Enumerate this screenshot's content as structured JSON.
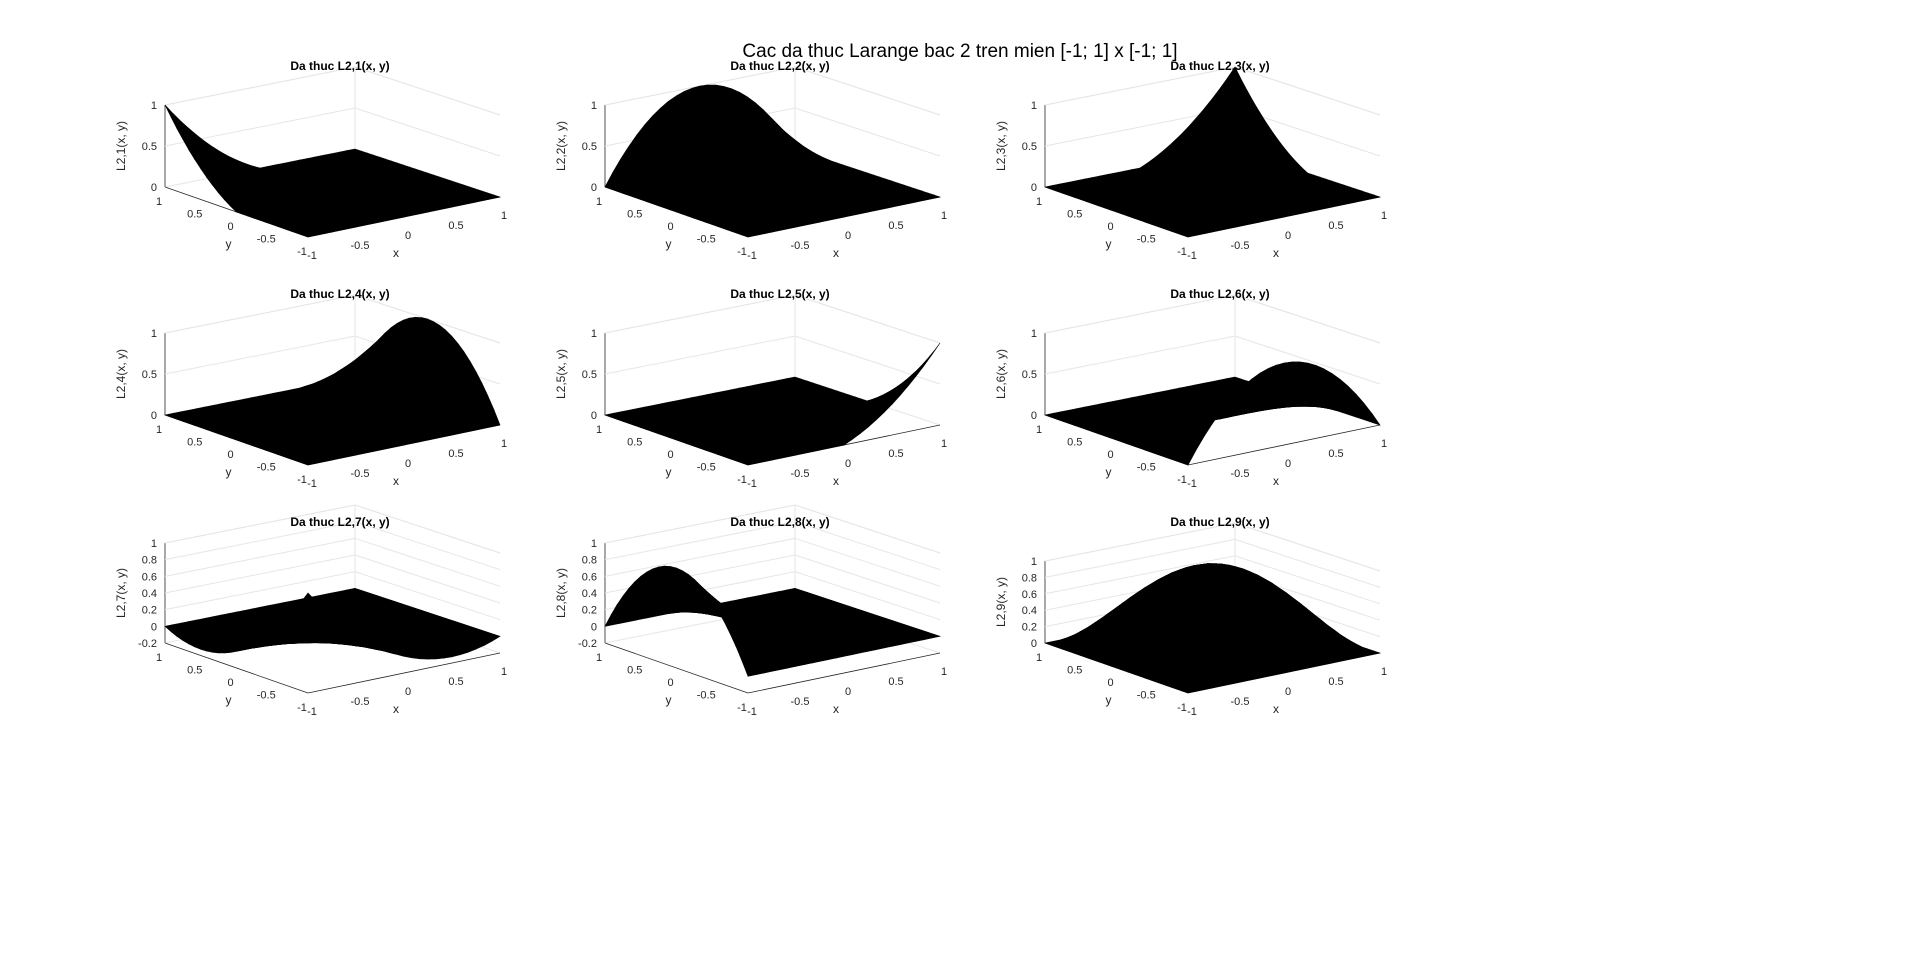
{
  "figure": {
    "title": "Cac da thuc Larange bac 2 tren mien [-1; 1] x [-1; 1]",
    "colors": {
      "surface": "#000000",
      "axis": "#262626",
      "grid": "#e6e6e6",
      "background": "#ffffff"
    }
  },
  "chart_data": [
    {
      "type": "surface",
      "id": "L1",
      "title": "Da thuc L2,1(x, y)",
      "xlabel": "x",
      "ylabel": "y",
      "zlabel": "L2,1(x, y)",
      "nodes": {
        "x": [
          -1,
          0,
          1
        ],
        "y": [
          -1,
          0,
          1
        ]
      },
      "peak_node": [
        -1,
        1
      ],
      "xlim": [
        -1,
        1
      ],
      "ylim": [
        -1,
        1
      ],
      "zlim": [
        0,
        1
      ],
      "xticks": [
        "-1",
        "-0.5",
        "0",
        "0.5",
        "1"
      ],
      "yticks": [
        "-1",
        "-0.5",
        "0",
        "0.5",
        "1"
      ],
      "zticks": [
        "0",
        "0.5",
        "1"
      ],
      "grid": true
    },
    {
      "type": "surface",
      "id": "L2",
      "title": "Da thuc L2,2(x, y)",
      "xlabel": "x",
      "ylabel": "y",
      "zlabel": "L2,2(x, y)",
      "nodes": {
        "x": [
          -1,
          0,
          1
        ],
        "y": [
          -1,
          0,
          1
        ]
      },
      "peak_node": [
        0,
        1
      ],
      "xlim": [
        -1,
        1
      ],
      "ylim": [
        -1,
        1
      ],
      "zlim": [
        0,
        1
      ],
      "xticks": [
        "-1",
        "-0.5",
        "0",
        "0.5",
        "1"
      ],
      "yticks": [
        "-1",
        "-0.5",
        "0",
        "0.5",
        "1"
      ],
      "zticks": [
        "0",
        "0.5",
        "1"
      ],
      "grid": true
    },
    {
      "type": "surface",
      "id": "L3",
      "title": "Da thuc L2,3(x, y)",
      "xlabel": "x",
      "ylabel": "y",
      "zlabel": "L2,3(x, y)",
      "nodes": {
        "x": [
          -1,
          0,
          1
        ],
        "y": [
          -1,
          0,
          1
        ]
      },
      "peak_node": [
        1,
        1
      ],
      "xlim": [
        -1,
        1
      ],
      "ylim": [
        -1,
        1
      ],
      "zlim": [
        0,
        1
      ],
      "xticks": [
        "-1",
        "-0.5",
        "0",
        "0.5",
        "1"
      ],
      "yticks": [
        "-1",
        "-0.5",
        "0",
        "0.5",
        "1"
      ],
      "zticks": [
        "0",
        "0.5",
        "1"
      ],
      "grid": true
    },
    {
      "type": "surface",
      "id": "L4",
      "title": "Da thuc L2,4(x, y)",
      "xlabel": "x",
      "ylabel": "y",
      "zlabel": "L2,4(x, y)",
      "nodes": {
        "x": [
          -1,
          0,
          1
        ],
        "y": [
          -1,
          0,
          1
        ]
      },
      "peak_node": [
        1,
        0
      ],
      "xlim": [
        -1,
        1
      ],
      "ylim": [
        -1,
        1
      ],
      "zlim": [
        0,
        1
      ],
      "xticks": [
        "-1",
        "-0.5",
        "0",
        "0.5",
        "1"
      ],
      "yticks": [
        "-1",
        "-0.5",
        "0",
        "0.5",
        "1"
      ],
      "zticks": [
        "0",
        "0.5",
        "1"
      ],
      "grid": true
    },
    {
      "type": "surface",
      "id": "L5",
      "title": "Da thuc L2,5(x, y)",
      "xlabel": "x",
      "ylabel": "y",
      "zlabel": "L2,5(x, y)",
      "nodes": {
        "x": [
          -1,
          0,
          1
        ],
        "y": [
          -1,
          0,
          1
        ]
      },
      "peak_node": [
        1,
        -1
      ],
      "xlim": [
        -1,
        1
      ],
      "ylim": [
        -1,
        1
      ],
      "zlim": [
        0,
        1
      ],
      "xticks": [
        "-1",
        "-0.5",
        "0",
        "0.5",
        "1"
      ],
      "yticks": [
        "-1",
        "-0.5",
        "0",
        "0.5",
        "1"
      ],
      "zticks": [
        "0",
        "0.5",
        "1"
      ],
      "grid": true
    },
    {
      "type": "surface",
      "id": "L6",
      "title": "Da thuc L2,6(x, y)",
      "xlabel": "x",
      "ylabel": "y",
      "zlabel": "L2,6(x, y)",
      "nodes": {
        "x": [
          -1,
          0,
          1
        ],
        "y": [
          -1,
          0,
          1
        ]
      },
      "peak_node": [
        0,
        -1
      ],
      "xlim": [
        -1,
        1
      ],
      "ylim": [
        -1,
        1
      ],
      "zlim": [
        0,
        1
      ],
      "xticks": [
        "-1",
        "-0.5",
        "0",
        "0.5",
        "1"
      ],
      "yticks": [
        "-1",
        "-0.5",
        "0",
        "0.5",
        "1"
      ],
      "zticks": [
        "0",
        "0.5",
        "1"
      ],
      "grid": true
    },
    {
      "type": "surface",
      "id": "L7",
      "title": "Da thuc L2,7(x, y)",
      "xlabel": "x",
      "ylabel": "y",
      "zlabel": "L2,7(x, y)",
      "nodes": {
        "x": [
          -1,
          0,
          1
        ],
        "y": [
          -1,
          0,
          1
        ]
      },
      "peak_node": [
        -1,
        -1
      ],
      "xlim": [
        -1,
        1
      ],
      "ylim": [
        -1,
        1
      ],
      "zlim": [
        -0.2,
        1
      ],
      "xticks": [
        "-1",
        "-0.5",
        "0",
        "0.5",
        "1"
      ],
      "yticks": [
        "-1",
        "-0.5",
        "0",
        "0.5",
        "1"
      ],
      "zticks": [
        "-0.2",
        "0",
        "0.2",
        "0.4",
        "0.6",
        "0.8",
        "1"
      ],
      "grid": true
    },
    {
      "type": "surface",
      "id": "L8",
      "title": "Da thuc L2,8(x, y)",
      "xlabel": "x",
      "ylabel": "y",
      "zlabel": "L2,8(x, y)",
      "nodes": {
        "x": [
          -1,
          0,
          1
        ],
        "y": [
          -1,
          0,
          1
        ]
      },
      "peak_node": [
        -1,
        0
      ],
      "xlim": [
        -1,
        1
      ],
      "ylim": [
        -1,
        1
      ],
      "zlim": [
        -0.2,
        1
      ],
      "xticks": [
        "-1",
        "-0.5",
        "0",
        "0.5",
        "1"
      ],
      "yticks": [
        "-1",
        "-0.5",
        "0",
        "0.5",
        "1"
      ],
      "zticks": [
        "-0.2",
        "0",
        "0.2",
        "0.4",
        "0.6",
        "0.8",
        "1"
      ],
      "grid": true
    },
    {
      "type": "surface",
      "id": "L9",
      "title": "Da thuc L2,9(x, y)",
      "xlabel": "x",
      "ylabel": "y",
      "zlabel": "L2,9(x, y)",
      "nodes": {
        "x": [
          -1,
          0,
          1
        ],
        "y": [
          -1,
          0,
          1
        ]
      },
      "peak_node": [
        0,
        0
      ],
      "xlim": [
        -1,
        1
      ],
      "ylim": [
        -1,
        1
      ],
      "zlim": [
        0,
        1
      ],
      "xticks": [
        "-1",
        "-0.5",
        "0",
        "0.5",
        "1"
      ],
      "yticks": [
        "-1",
        "-0.5",
        "0",
        "0.5",
        "1"
      ],
      "zticks": [
        "0",
        "0.2",
        "0.4",
        "0.6",
        "0.8",
        "1"
      ],
      "grid": true
    }
  ]
}
